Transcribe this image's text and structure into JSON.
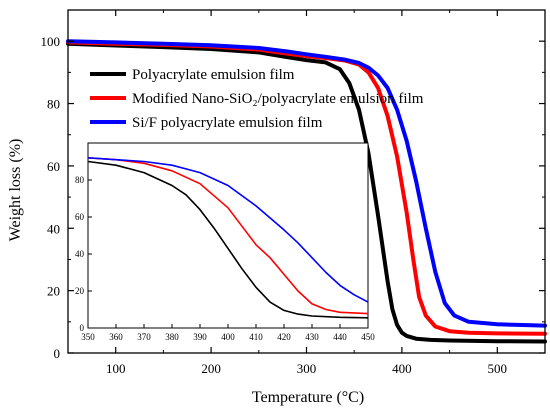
{
  "chart_data": [
    {
      "type": "line",
      "panel": "main",
      "xlabel": "Temperature (°C)",
      "ylabel": "Weight loss (%)",
      "xlim": [
        50,
        550
      ],
      "ylim": [
        0,
        110
      ],
      "xticks": [
        100,
        200,
        300,
        400,
        500
      ],
      "yticks": [
        0,
        20,
        40,
        60,
        80,
        100
      ],
      "legend_position": "upper-center",
      "series": [
        {
          "name": "Polyacrylate emulsion film",
          "color": "#000000",
          "x": [
            50,
            100,
            150,
            200,
            250,
            280,
            300,
            320,
            335,
            345,
            355,
            365,
            375,
            385,
            390,
            395,
            400,
            405,
            415,
            430,
            450,
            500,
            550
          ],
          "y": [
            99.2,
            98.6,
            98.1,
            97.5,
            96.4,
            94.9,
            93.9,
            93.2,
            91.0,
            86.5,
            78.0,
            64.0,
            44.0,
            23.0,
            14.0,
            9.0,
            6.5,
            5.5,
            4.6,
            4.2,
            4.0,
            3.8,
            3.7
          ]
        },
        {
          "name": "Modified Nano-SiO₂/polyacrylate emulsion film",
          "color": "#ff0000",
          "x": [
            50,
            100,
            150,
            200,
            250,
            280,
            300,
            320,
            340,
            355,
            365,
            375,
            385,
            395,
            405,
            412,
            418,
            425,
            435,
            450,
            470,
            500,
            550
          ],
          "y": [
            99.6,
            99.2,
            98.8,
            98.3,
            97.3,
            96.0,
            95.2,
            94.6,
            93.8,
            92.5,
            90.0,
            85.0,
            76.0,
            63.0,
            45.0,
            30.0,
            18.0,
            12.0,
            8.5,
            7.0,
            6.5,
            6.3,
            6.2
          ]
        },
        {
          "name": "Si/F polyacrylate emulsion film",
          "color": "#0000ff",
          "x": [
            50,
            100,
            150,
            200,
            250,
            280,
            300,
            320,
            340,
            355,
            365,
            375,
            385,
            395,
            405,
            415,
            425,
            435,
            445,
            455,
            470,
            500,
            550
          ],
          "y": [
            100.0,
            99.6,
            99.2,
            98.7,
            97.8,
            96.7,
            95.8,
            95.0,
            94.1,
            93.0,
            91.5,
            89.0,
            85.0,
            78.0,
            68.0,
            55.0,
            40.0,
            26.0,
            16.0,
            12.0,
            10.0,
            9.2,
            8.8
          ]
        }
      ]
    },
    {
      "type": "line",
      "panel": "inset",
      "xlim": [
        350,
        450
      ],
      "ylim": [
        0,
        100
      ],
      "xticks": [
        350,
        360,
        370,
        380,
        390,
        400,
        410,
        420,
        430,
        440,
        450
      ],
      "yticks": [
        0,
        20,
        40,
        60,
        80
      ],
      "series": [
        {
          "color": "#000000",
          "x": [
            350,
            360,
            370,
            380,
            385,
            390,
            395,
            400,
            405,
            410,
            415,
            420,
            425,
            430,
            440,
            450
          ],
          "y": [
            90,
            88,
            84,
            77,
            72,
            64,
            54,
            43,
            32,
            22,
            14,
            9.5,
            7.5,
            6.5,
            5.8,
            5.5
          ]
        },
        {
          "color": "#ff0000",
          "x": [
            350,
            360,
            370,
            380,
            390,
            400,
            405,
            410,
            415,
            420,
            425,
            430,
            435,
            440,
            450
          ],
          "y": [
            92,
            91,
            89,
            85,
            78,
            65,
            55,
            45,
            38,
            29,
            20,
            13,
            10,
            8.5,
            7.8
          ]
        },
        {
          "color": "#0000ff",
          "x": [
            350,
            360,
            370,
            380,
            390,
            400,
            410,
            420,
            425,
            430,
            435,
            440,
            445,
            450
          ],
          "y": [
            92,
            91,
            90,
            88,
            84,
            77,
            66,
            53,
            46,
            38,
            30,
            23,
            18,
            14
          ]
        }
      ]
    }
  ]
}
